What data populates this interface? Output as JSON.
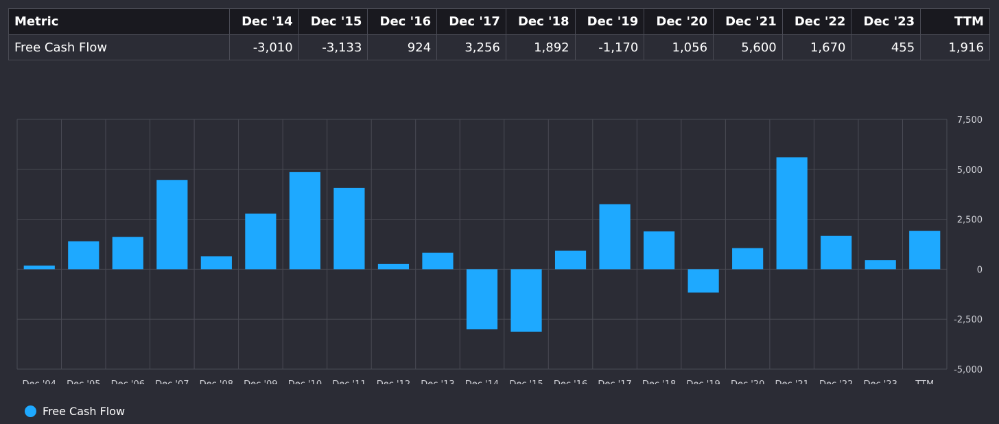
{
  "table": {
    "header_metric": "Metric",
    "columns": [
      "Dec '14",
      "Dec '15",
      "Dec '16",
      "Dec '17",
      "Dec '18",
      "Dec '19",
      "Dec '20",
      "Dec '21",
      "Dec '22",
      "Dec '23",
      "TTM"
    ],
    "rows": [
      {
        "metric": "Free Cash Flow",
        "values": [
          "-3,010",
          "-3,133",
          "924",
          "3,256",
          "1,892",
          "-1,170",
          "1,056",
          "5,600",
          "1,670",
          "455",
          "1,916"
        ]
      }
    ]
  },
  "colors": {
    "bar": "#1ea9ff",
    "grid": "#4a4b55",
    "axis_text": "#cfd0d6"
  },
  "chart_data": {
    "type": "bar",
    "title": "",
    "xlabel": "",
    "ylabel": "",
    "categories": [
      "Dec '04",
      "Dec '05",
      "Dec '06",
      "Dec '07",
      "Dec '08",
      "Dec '09",
      "Dec '10",
      "Dec '11",
      "Dec '12",
      "Dec '13",
      "Dec '14",
      "Dec '15",
      "Dec '16",
      "Dec '17",
      "Dec '18",
      "Dec '19",
      "Dec '20",
      "Dec '21",
      "Dec '22",
      "Dec '23",
      "TTM"
    ],
    "series": [
      {
        "name": "Free Cash Flow",
        "values": [
          180,
          1400,
          1620,
          4470,
          650,
          2780,
          4860,
          4070,
          260,
          820,
          -3010,
          -3133,
          924,
          3256,
          1892,
          -1170,
          1056,
          5600,
          1670,
          455,
          1916
        ]
      }
    ],
    "ylim": [
      -5000,
      7500
    ],
    "yticks": [
      7500,
      5000,
      2500,
      0,
      -2500,
      -5000
    ],
    "ytick_labels": [
      "7,500",
      "5,000",
      "2,500",
      "0",
      "-2,500",
      "-5,000"
    ],
    "grid": true,
    "legend_position": "bottom-left"
  }
}
